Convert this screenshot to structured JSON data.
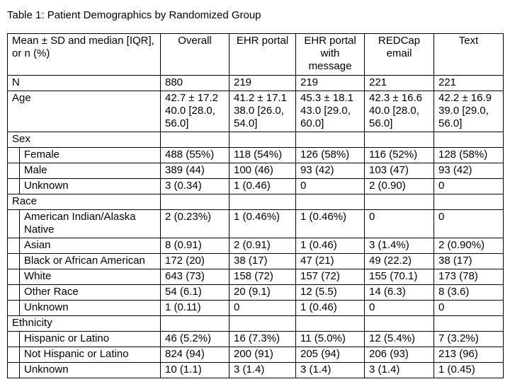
{
  "title": "Table 1: Patient Demographics by Randomized Group",
  "table": {
    "header": {
      "label": "Mean ± SD and median [IQR], or n (%)",
      "columns": [
        "Overall",
        "EHR portal",
        "EHR portal\nwith\nmessage",
        "REDCap\nemail",
        "Text"
      ]
    },
    "rows": [
      {
        "label": "N",
        "indent": 0,
        "section": false,
        "values": [
          "880",
          "219",
          "219",
          "221",
          "221"
        ]
      },
      {
        "label": "Age",
        "indent": 0,
        "section": false,
        "values": [
          [
            "42.7 ± 17.2",
            "40.0 [28.0, 56.0]"
          ],
          [
            "41.2 ± 17.1",
            "38.0 [26.0, 54.0]"
          ],
          [
            "45.3 ± 18.1",
            "43.0 [29.0, 60.0]"
          ],
          [
            "42.3 ± 16.6",
            "40.0 [28.0, 56.0]"
          ],
          [
            "42.2 ± 16.9",
            "39.0 [29.0, 56.0]"
          ]
        ]
      },
      {
        "label": "Sex",
        "indent": 0,
        "section": true,
        "values": [
          "",
          "",
          "",
          "",
          ""
        ]
      },
      {
        "label": "Female",
        "indent": 1,
        "section": false,
        "values": [
          "488 (55%)",
          "118 (54%)",
          "126 (58%)",
          "116 (52%)",
          "128 (58%)"
        ]
      },
      {
        "label": "Male",
        "indent": 1,
        "section": false,
        "values": [
          "389 (44)",
          "100 (46)",
          "93 (42)",
          "103 (47)",
          "93 (42)"
        ]
      },
      {
        "label": "Unknown",
        "indent": 1,
        "section": false,
        "values": [
          "3 (0.34)",
          "1 (0.46)",
          "0",
          "2 (0.90)",
          "0"
        ]
      },
      {
        "label": "Race",
        "indent": 0,
        "section": true,
        "values": [
          "",
          "",
          "",
          "",
          ""
        ]
      },
      {
        "label": "American Indian/Alaska Native",
        "indent": 1,
        "section": false,
        "values": [
          "2 (0.23%)",
          "1 (0.46%)",
          "1 (0.46%)",
          "0",
          "0"
        ]
      },
      {
        "label": "Asian",
        "indent": 1,
        "section": false,
        "values": [
          "8 (0.91)",
          "2 (0.91)",
          "1 (0.46)",
          "3 (1.4%)",
          "2 (0.90%)"
        ]
      },
      {
        "label": "Black or African American",
        "indent": 1,
        "section": false,
        "values": [
          "172 (20)",
          "38 (17)",
          "47 (21)",
          "49 (22.2)",
          "38 (17)"
        ]
      },
      {
        "label": "White",
        "indent": 1,
        "section": false,
        "values": [
          "643 (73)",
          "158 (72)",
          "157 (72)",
          "155 (70.1)",
          "173 (78)"
        ]
      },
      {
        "label": "Other Race",
        "indent": 1,
        "section": false,
        "values": [
          "54 (6.1)",
          "20 (9.1)",
          "12 (5.5)",
          "14 (6.3)",
          "8 (3.6)"
        ]
      },
      {
        "label": "Unknown",
        "indent": 1,
        "section": false,
        "values": [
          "1 (0.11)",
          "0",
          "1 (0.46)",
          "0",
          "0"
        ]
      },
      {
        "label": "Ethnicity",
        "indent": 0,
        "section": true,
        "values": [
          "",
          "",
          "",
          "",
          ""
        ]
      },
      {
        "label": "Hispanic or Latino",
        "indent": 1,
        "section": false,
        "values": [
          "46 (5.2%)",
          "16 (7.3%)",
          "11 (5.0%)",
          "12 (5.4%)",
          "7 (3.2%)"
        ]
      },
      {
        "label": "Not Hispanic or Latino",
        "indent": 1,
        "section": false,
        "values": [
          "824 (94)",
          "200 (91)",
          "205 (94)",
          "206 (93)",
          "213 (96)"
        ]
      },
      {
        "label": "Unknown",
        "indent": 1,
        "section": false,
        "values": [
          "10 (1.1)",
          "3 (1.4)",
          "3 (1.4)",
          "3 (1.4)",
          "1 (0.45)"
        ]
      }
    ]
  }
}
